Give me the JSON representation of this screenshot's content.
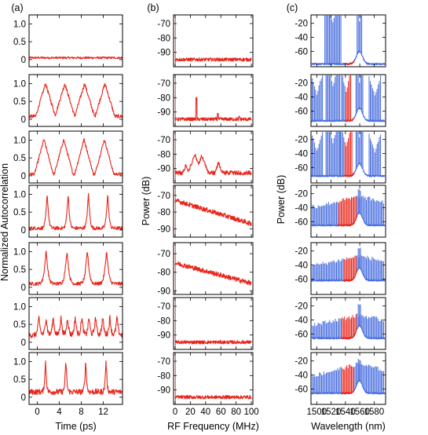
{
  "colors": {
    "red": "#e8261c",
    "blue": "#4a6fe0",
    "axis": "#000000"
  },
  "chart_data": [
    {
      "type": "line",
      "column_label": "(a)",
      "xlabel": "Time (ps)",
      "ylabel": "Normalized Autocorrelation",
      "xlim": [
        -1.5,
        15.5
      ],
      "ylim": [
        -0.2,
        1.25
      ],
      "x_ticks": [
        0,
        4,
        8,
        12
      ],
      "x_tick_labels": [
        "0",
        "4",
        "8",
        "12"
      ],
      "y_ticks": [
        0,
        0.5,
        1.0
      ],
      "y_tick_labels": [
        "0",
        "0.5",
        "1.0"
      ],
      "rows": [
        {
          "kind": "flat",
          "level": 0.05,
          "noise": 0.03
        },
        {
          "kind": "triangle",
          "peaks": [
            1.5,
            5.0,
            8.6,
            12.3
          ],
          "width": 1.8,
          "height": 1.0,
          "base": 0.08,
          "noise": 0.05
        },
        {
          "kind": "triangle",
          "peaks": [
            1.2,
            4.8,
            8.5,
            12.2
          ],
          "width": 1.7,
          "height": 1.02,
          "base": 0.05,
          "noise": 0.04
        },
        {
          "kind": "spiky",
          "peaks": [
            1.8,
            5.6,
            9.3,
            12.8
          ],
          "width": 0.5,
          "height": 1.0,
          "base": 0.05,
          "noise": 0.05
        },
        {
          "kind": "spiky",
          "peaks": [
            1.6,
            5.4,
            9.1,
            12.6
          ],
          "width": 0.7,
          "height": 1.0,
          "base": 0.1,
          "noise": 0.05
        },
        {
          "kind": "oscillating",
          "peaks": [
            0.3,
            1.6,
            2.9,
            4.3,
            5.5,
            6.9,
            8.1,
            9.4,
            10.6,
            11.9,
            13.2,
            14.5
          ],
          "width": 0.45,
          "height": 0.7,
          "base": 0.2,
          "noise": 0.08
        },
        {
          "kind": "spiky",
          "peaks": [
            1.5,
            5.2,
            8.8,
            12.5
          ],
          "width": 0.35,
          "height": 1.0,
          "base": 0.15,
          "noise": 0.08
        }
      ]
    },
    {
      "type": "line",
      "column_label": "(b)",
      "xlabel": "RF Frequency (MHz)",
      "ylabel": "Power (dB)",
      "xlim": [
        -2,
        102
      ],
      "x_ticks": [
        0,
        20,
        40,
        60,
        80,
        100
      ],
      "x_tick_labels": [
        "0",
        "20",
        "40",
        "60",
        "80",
        "100"
      ],
      "rows": [
        {
          "ylim": [
            -100,
            -64
          ],
          "y_ticks": [
            -70,
            -80,
            -90
          ],
          "y_tick_labels": [
            "-70",
            "-80",
            "-90"
          ],
          "kind": "floor",
          "level": -95,
          "noise": 1.2,
          "peaks": []
        },
        {
          "ylim": [
            -100,
            -64
          ],
          "y_ticks": [
            -70,
            -80,
            -90
          ],
          "y_tick_labels": [
            "-70",
            "-80",
            "-90"
          ],
          "kind": "floor",
          "level": -95,
          "noise": 1.2,
          "peaks": [
            [
              28,
              -80
            ],
            [
              56,
              -91
            ],
            [
              84,
              -93
            ]
          ]
        },
        {
          "ylim": [
            -100,
            -64
          ],
          "y_ticks": [
            -70,
            -80,
            -90
          ],
          "y_tick_labels": [
            "-70",
            "-80",
            "-90"
          ],
          "kind": "bumps",
          "level": -93,
          "noise": 1.5,
          "peaks": [
            [
              14,
              -88
            ],
            [
              26,
              -80
            ],
            [
              35,
              -81
            ],
            [
              57,
              -86
            ]
          ]
        },
        {
          "ylim": [
            -95,
            -64
          ],
          "y_ticks": [
            -70,
            -80,
            -90
          ],
          "y_tick_labels": [
            "-70",
            "-80",
            "-90"
          ],
          "kind": "slope",
          "start": -73,
          "end": -87,
          "noise": 1.4,
          "peaks": []
        },
        {
          "ylim": [
            -92,
            -64
          ],
          "y_ticks": [
            -70,
            -80,
            -90
          ],
          "y_tick_labels": [
            "-70",
            "-80",
            "-90"
          ],
          "kind": "slope",
          "start": -75,
          "end": -86,
          "noise": 1.3,
          "peaks": []
        },
        {
          "ylim": [
            -100,
            -64
          ],
          "y_ticks": [
            -70,
            -80,
            -90
          ],
          "y_tick_labels": [
            "-70",
            "-80",
            "-90"
          ],
          "kind": "floor",
          "level": -95,
          "noise": 1.2,
          "peaks": []
        },
        {
          "ylim": [
            -100,
            -64
          ],
          "y_ticks": [
            -70,
            -80,
            -90
          ],
          "y_tick_labels": [
            "-70",
            "-80",
            "-90"
          ],
          "kind": "floor",
          "level": -95,
          "noise": 1.2,
          "peaks": []
        }
      ]
    },
    {
      "type": "line",
      "column_label": "(c)",
      "xlabel": "Wavelength (nm)",
      "ylabel": "Power (dB)",
      "xlim": [
        1492,
        1596
      ],
      "ylim": [
        -82,
        -8
      ],
      "x_ticks": [
        1500,
        1520,
        1540,
        1560,
        1580
      ],
      "x_tick_labels": [
        "1500",
        "1520",
        "1540",
        "1560",
        "1580"
      ],
      "y_ticks": [
        -20,
        -40,
        -60
      ],
      "y_tick_labels": [
        "-20",
        "-40",
        "-60"
      ],
      "pump_nm": 1559.5,
      "rows": [
        {
          "floor": -78,
          "red_range": [
            1540,
            1552
          ],
          "lines": [
            {
              "center": 1522.5,
              "spacing": 1.6,
              "halfwidth": 7,
              "peak": -20
            },
            {
              "center": 1559.5,
              "spacing": 1.6,
              "halfwidth": 2,
              "peak": -16
            }
          ]
        },
        {
          "floor": -74,
          "red_range": [
            1540,
            1552
          ],
          "lines": [
            {
              "center": 1522.5,
              "spacing": 1.6,
              "halfwidth": 6,
              "peak": -25
            },
            {
              "center": 1559.5,
              "spacing": 1.6,
              "halfwidth": 3,
              "peak": -18
            },
            {
              "center": 1500,
              "spacing": 1.6,
              "halfwidth": 5,
              "peak": -36
            },
            {
              "center": 1581,
              "spacing": 1.6,
              "halfwidth": 5,
              "peak": -38
            },
            {
              "center": 1541,
              "spacing": 1.6,
              "halfwidth": 4,
              "peak": -33
            }
          ]
        },
        {
          "floor": -72,
          "red_range": [
            1538,
            1552
          ],
          "lines": [
            {
              "center": 1522.5,
              "spacing": 1.6,
              "halfwidth": 6,
              "peak": -25
            },
            {
              "center": 1559.5,
              "spacing": 1.6,
              "halfwidth": 3,
              "peak": -18
            },
            {
              "center": 1500,
              "spacing": 1.6,
              "halfwidth": 5,
              "peak": -36
            },
            {
              "center": 1581,
              "spacing": 1.6,
              "halfwidth": 5,
              "peak": -38
            },
            {
              "center": 1541,
              "spacing": 1.6,
              "halfwidth": 5,
              "peak": -30
            }
          ]
        },
        {
          "floor": -65,
          "red_range": [
            1530,
            1556
          ],
          "dense": true,
          "env_peak": -24,
          "env_edge": -38,
          "lines": [
            {
              "center": 1559.5,
              "spacing": 1.6,
              "halfwidth": 1,
              "peak": -15
            }
          ]
        },
        {
          "floor": -62,
          "red_range": [
            1538,
            1556
          ],
          "dense": true,
          "env_peak": -27,
          "env_edge": -40,
          "lines": [
            {
              "center": 1559.5,
              "spacing": 1.6,
              "halfwidth": 1,
              "peak": -16
            }
          ]
        },
        {
          "floor": -66,
          "red_range": [
            1535,
            1555
          ],
          "dense": true,
          "env_peak": -33,
          "env_edge": -46,
          "lines": [
            {
              "center": 1559.5,
              "spacing": 1.6,
              "halfwidth": 1,
              "peak": -17
            }
          ]
        },
        {
          "floor": -66,
          "red_range": [
            1535,
            1552
          ],
          "dense": true,
          "env_peak": -24,
          "env_edge": -40,
          "lines": [
            {
              "center": 1559.5,
              "spacing": 1.6,
              "halfwidth": 1,
              "peak": -18
            }
          ]
        }
      ]
    }
  ]
}
